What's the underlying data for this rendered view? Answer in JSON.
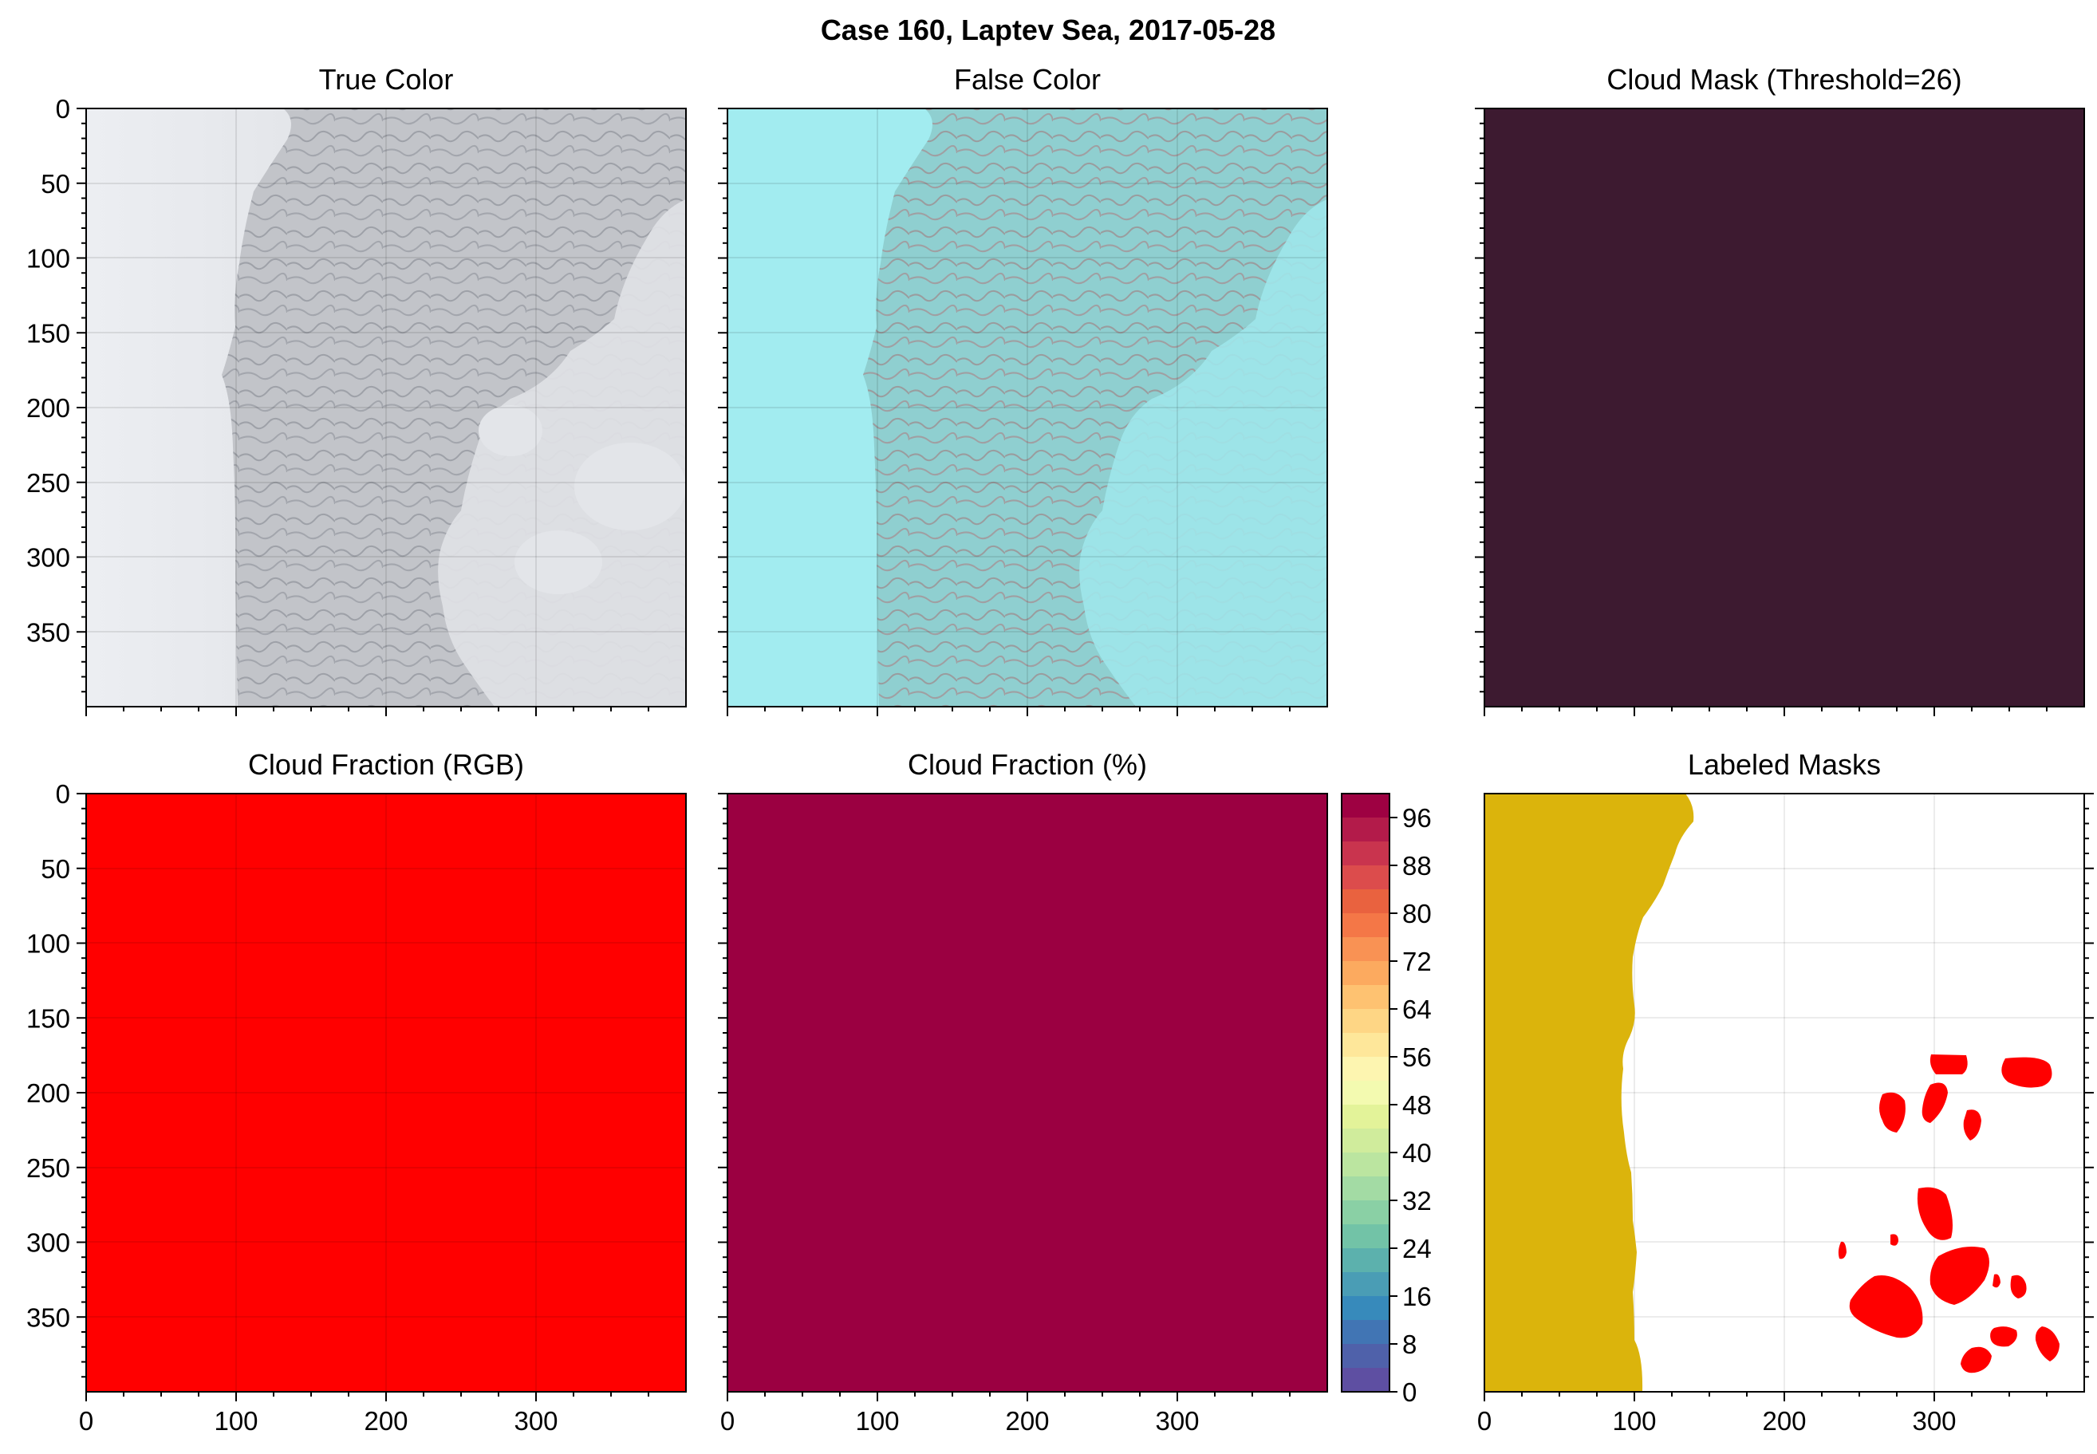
{
  "figure": {
    "suptitle": "Case 160, Laptev Sea, 2017-05-28"
  },
  "chart_data": [
    {
      "type": "image",
      "panel": "true_color",
      "title": "True Color",
      "content": "satellite image: smooth white fast ice on left, gray textured sea ice in middle, bright ice floes lower right",
      "xlim": [
        0,
        400
      ],
      "ylim": [
        400,
        0
      ],
      "xticks": [],
      "yticks": [
        0,
        50,
        100,
        150,
        200,
        250,
        300,
        350
      ],
      "show_yticklabels": true,
      "grid": true
    },
    {
      "type": "image",
      "panel": "false_color",
      "title": "False Color",
      "content": "cyan false-color satellite image of same scene",
      "xlim": [
        0,
        400
      ],
      "ylim": [
        400,
        0
      ],
      "grid": true
    },
    {
      "type": "heatmap",
      "panel": "cloud_mask",
      "title": "Cloud Mask (Threshold=26)",
      "fill_color": "#3d1a30",
      "value": "uniform",
      "xlim": [
        0,
        400
      ],
      "ylim": [
        400,
        0
      ],
      "grid": false
    },
    {
      "type": "heatmap",
      "panel": "cloud_fraction_rgb",
      "title": "Cloud Fraction (RGB)",
      "fill_color": "#ff0000",
      "xlim": [
        0,
        400
      ],
      "ylim": [
        400,
        0
      ],
      "xticks": [
        0,
        100,
        200,
        300
      ],
      "yticks": [
        0,
        50,
        100,
        150,
        200,
        250,
        300,
        350
      ],
      "grid": true
    },
    {
      "type": "heatmap",
      "panel": "cloud_fraction_pct",
      "title": "Cloud Fraction (%)",
      "fill_color": "#9b0041",
      "value": 100,
      "xlim": [
        0,
        400
      ],
      "ylim": [
        400,
        0
      ],
      "xticks": [
        0,
        100,
        200,
        300
      ],
      "colorbar": {
        "levels": [
          0,
          4,
          8,
          12,
          16,
          20,
          24,
          28,
          32,
          36,
          40,
          44,
          48,
          52,
          56,
          60,
          64,
          68,
          72,
          76,
          80,
          84,
          88,
          92,
          96,
          100
        ],
        "ticks": [
          0,
          8,
          16,
          24,
          32,
          40,
          48,
          56,
          64,
          72,
          80,
          88,
          96
        ],
        "colors": [
          "#5e4fa2",
          "#4f61aa",
          "#4175b4",
          "#378abb",
          "#4a9db5",
          "#5cb1ad",
          "#72c3a7",
          "#8ad0a5",
          "#a3dba4",
          "#bbe5a0",
          "#d0ec9c",
          "#e3f399",
          "#f3fab0",
          "#fdf5b0",
          "#fee79a",
          "#fed685",
          "#fec271",
          "#fcaa5f",
          "#f99254",
          "#f47747",
          "#e9623f",
          "#dc4c4c",
          "#c9344e",
          "#b31b4a",
          "#9e0142"
        ]
      },
      "grid": false
    },
    {
      "type": "heatmap",
      "panel": "labeled_masks",
      "title": "Labeled Masks",
      "regions": [
        {
          "color": "#dbb40c",
          "description": "large yellow region along left edge (x 0–140)"
        },
        {
          "color": "#ff0000",
          "description": "red floe labels in lower right"
        }
      ],
      "xlim": [
        0,
        400
      ],
      "ylim": [
        400,
        0
      ],
      "xticks": [
        0,
        100,
        200,
        300
      ],
      "yticks_right": [
        0,
        50,
        100,
        150,
        200,
        250,
        300,
        350
      ],
      "grid": true
    }
  ],
  "axes_labels": {
    "y_ticks": [
      "0",
      "50",
      "100",
      "150",
      "200",
      "250",
      "300",
      "350"
    ],
    "x_ticks": [
      "0",
      "100",
      "200",
      "300"
    ]
  },
  "colors": {
    "cloud_mask": "#3d1a30",
    "rgb_fraction": "#ff0000",
    "pct_fraction": "#9b0041",
    "labeled_yellow": "#dbb40c",
    "labeled_red": "#ff0000"
  }
}
